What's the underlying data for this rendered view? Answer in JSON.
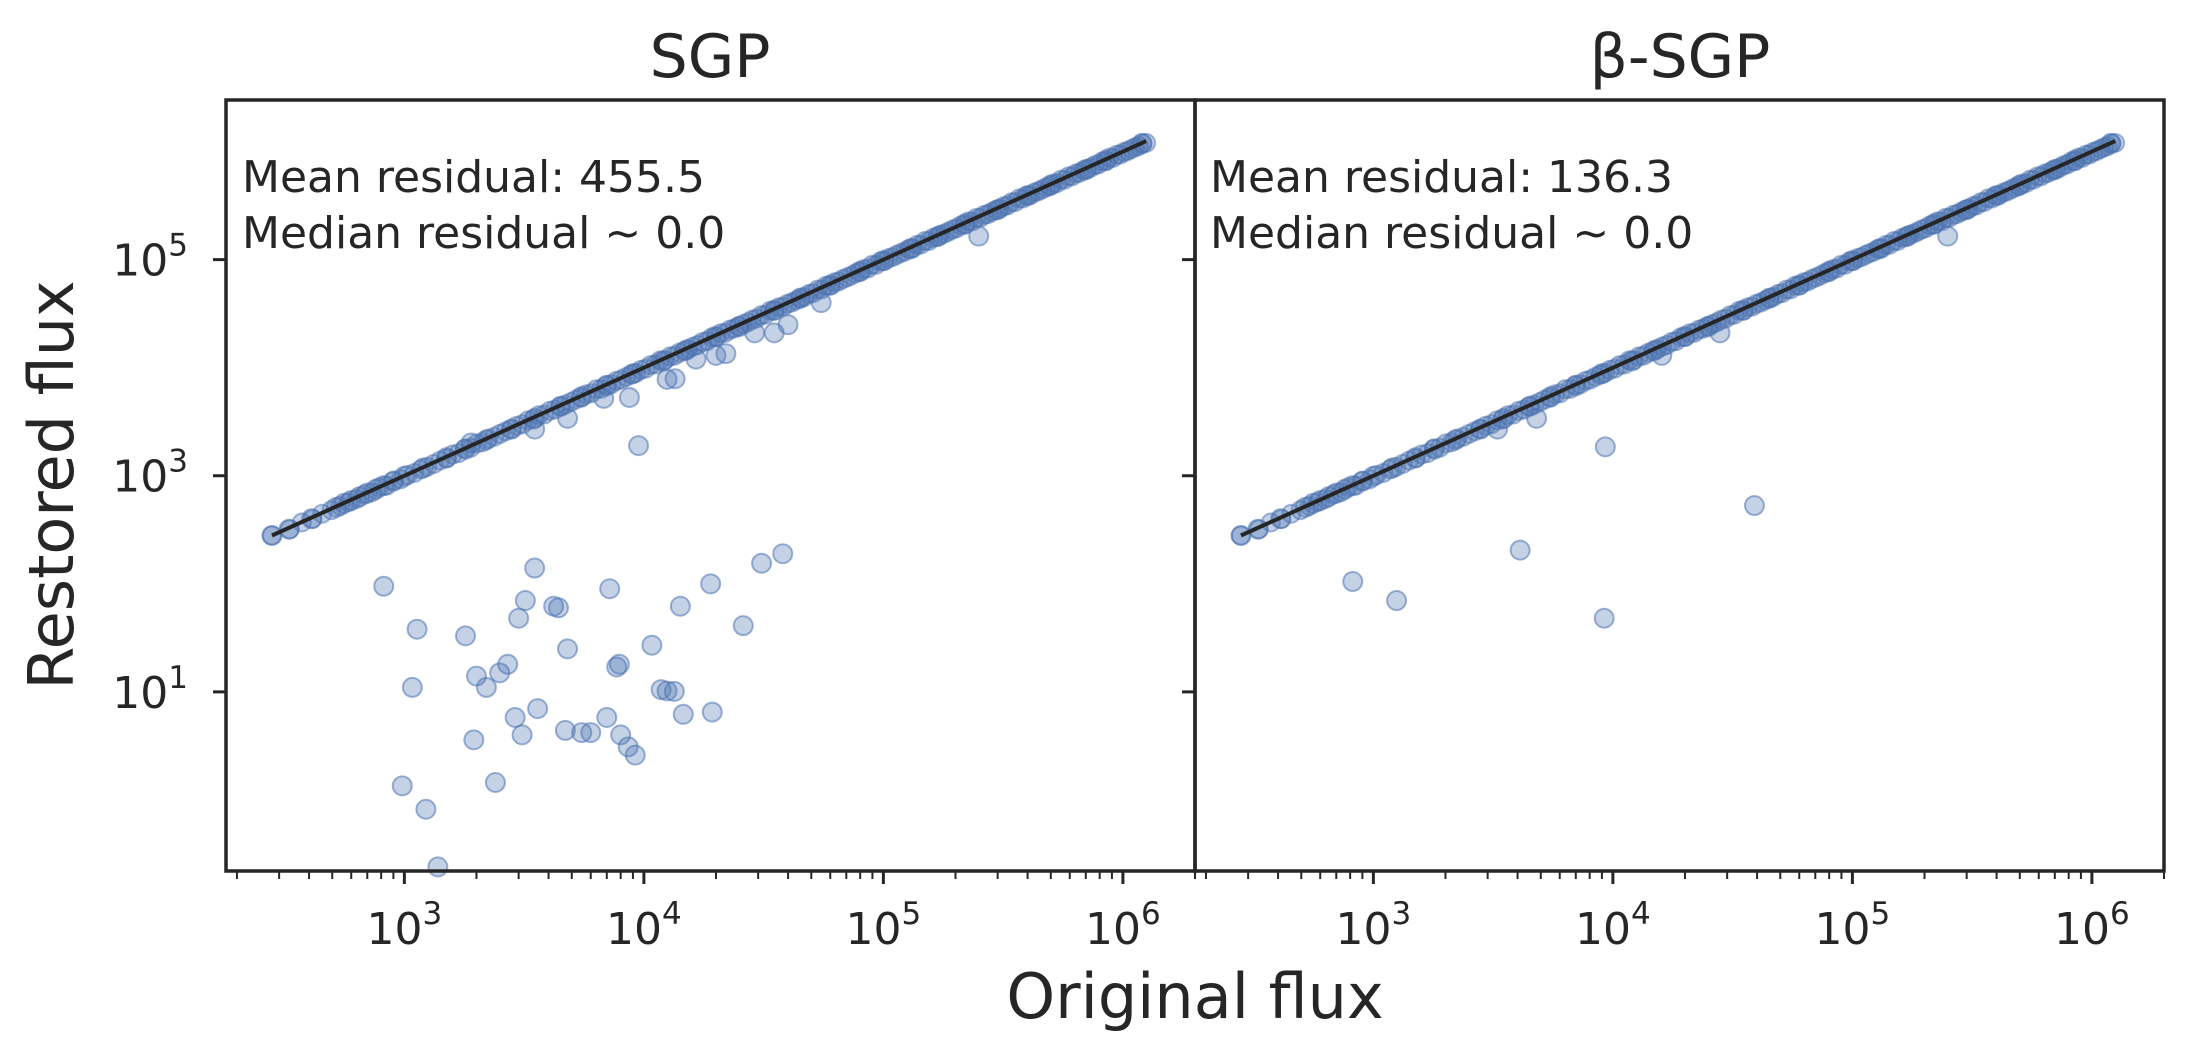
{
  "figure": {
    "xlabel": "Original flux",
    "ylabel": "Restored flux"
  },
  "colors": {
    "points": "#4c72b0",
    "identity_line": "#262626",
    "axes": "#262626",
    "text": "#262626"
  },
  "chart_data": [
    {
      "type": "scatter",
      "title": "SGP",
      "xscale": "log",
      "yscale": "log",
      "xlim": [
        180,
        2000000
      ],
      "ylim": [
        0.22,
        3000000
      ],
      "xticks": [
        {
          "base": "10",
          "exp": "3",
          "value": 1000
        },
        {
          "base": "10",
          "exp": "4",
          "value": 10000
        },
        {
          "base": "10",
          "exp": "5",
          "value": 100000
        },
        {
          "base": "10",
          "exp": "6",
          "value": 1000000
        }
      ],
      "yticks": [
        {
          "base": "10",
          "exp": "1",
          "value": 10
        },
        {
          "base": "10",
          "exp": "3",
          "value": 1000
        },
        {
          "base": "10",
          "exp": "5",
          "value": 100000
        }
      ],
      "annotations": [
        "Mean residual: 455.5",
        "Median residual ~ 0.0"
      ],
      "identity_line": {
        "x": [
          280,
          1250000
        ],
        "y": [
          280,
          1250000
        ]
      },
      "on_line_range": [
        280,
        1250000
      ],
      "series": [
        {
          "values": [
            [
              280,
              280
            ],
            [
              330,
              320
            ],
            [
              410,
              400
            ],
            [
              520,
              510
            ],
            [
              560,
              555
            ],
            [
              600,
              590
            ],
            [
              650,
              640
            ],
            [
              700,
              690
            ],
            [
              760,
              750
            ],
            [
              820,
              810
            ],
            [
              900,
              890
            ],
            [
              1000,
              990
            ],
            [
              1200,
              1180
            ],
            [
              1500,
              1470
            ],
            [
              1800,
              1760
            ],
            [
              2200,
              2150
            ],
            [
              2800,
              2700
            ],
            [
              3500,
              3400
            ],
            [
              4500,
              4400
            ],
            [
              5500,
              5400
            ],
            [
              7000,
              6800
            ],
            [
              9000,
              8800
            ],
            [
              12000,
              11500
            ],
            [
              15000,
              14500
            ],
            [
              20000,
              19500
            ],
            [
              25000,
              24000
            ],
            [
              35000,
              34000
            ],
            [
              45000,
              44000
            ],
            [
              60000,
              58000
            ],
            [
              80000,
              78000
            ],
            [
              100000,
              98000
            ],
            [
              130000,
              126000
            ],
            [
              170000,
              165000
            ],
            [
              220000,
              215000
            ],
            [
              300000,
              290000
            ],
            [
              400000,
              390000
            ],
            [
              500000,
              490000
            ],
            [
              700000,
              680000
            ],
            [
              850000,
              830000
            ],
            [
              1200000,
              1190000
            ],
            [
              1900,
              2010
            ],
            [
              3500,
              2700
            ],
            [
              4800,
              3400
            ],
            [
              6800,
              5200
            ],
            [
              8700,
              5300
            ],
            [
              12500,
              7800
            ],
            [
              13500,
              7900
            ],
            [
              16500,
              12000
            ],
            [
              20000,
              13000
            ],
            [
              22000,
              13500
            ],
            [
              29000,
              21000
            ],
            [
              35000,
              21000
            ],
            [
              40000,
              25000
            ],
            [
              55000,
              40000
            ],
            [
              9500,
              1900
            ],
            [
              250000,
              165000
            ],
            [
              820,
              95
            ],
            [
              1080,
              11
            ],
            [
              1130,
              38
            ],
            [
              1800,
              33
            ],
            [
              2000,
              14
            ],
            [
              2200,
              11
            ],
            [
              2500,
              15
            ],
            [
              2700,
              18
            ],
            [
              3000,
              48
            ],
            [
              3200,
              70
            ],
            [
              3500,
              140
            ],
            [
              3600,
              7
            ],
            [
              4200,
              62
            ],
            [
              4400,
              60
            ],
            [
              4800,
              25
            ],
            [
              7200,
              90
            ],
            [
              7700,
              17
            ],
            [
              7900,
              18
            ],
            [
              10800,
              27
            ],
            [
              14200,
              62
            ],
            [
              19000,
              100
            ],
            [
              26000,
              41
            ],
            [
              31000,
              155
            ],
            [
              38000,
              190
            ],
            [
              11800,
              10.5
            ],
            [
              12500,
              10.2
            ],
            [
              13400,
              10.1
            ],
            [
              1950,
              3.6
            ],
            [
              2400,
              1.45
            ],
            [
              2900,
              5.8
            ],
            [
              3100,
              4.0
            ],
            [
              4700,
              4.4
            ],
            [
              5500,
              4.2
            ],
            [
              6000,
              4.2
            ],
            [
              7000,
              5.8
            ],
            [
              8000,
              4.0
            ],
            [
              8600,
              3.1
            ],
            [
              9200,
              2.6
            ],
            [
              14600,
              6.2
            ],
            [
              19300,
              6.5
            ],
            [
              980,
              1.35
            ],
            [
              1230,
              0.82
            ],
            [
              1380,
              0.24
            ]
          ]
        }
      ]
    },
    {
      "type": "scatter",
      "title": "β-SGP",
      "xscale": "log",
      "yscale": "log",
      "xlim": [
        180,
        2000000
      ],
      "ylim": [
        0.22,
        3000000
      ],
      "xticks": [
        {
          "base": "10",
          "exp": "3",
          "value": 1000
        },
        {
          "base": "10",
          "exp": "4",
          "value": 10000
        },
        {
          "base": "10",
          "exp": "5",
          "value": 100000
        },
        {
          "base": "10",
          "exp": "6",
          "value": 1000000
        }
      ],
      "annotations": [
        "Mean residual: 136.3",
        "Median residual ~ 0.0"
      ],
      "identity_line": {
        "x": [
          280,
          1250000
        ],
        "y": [
          280,
          1250000
        ]
      },
      "on_line_range": [
        280,
        1250000
      ],
      "series": [
        {
          "values": [
            [
              280,
              280
            ],
            [
              330,
              320
            ],
            [
              410,
              400
            ],
            [
              520,
              510
            ],
            [
              560,
              555
            ],
            [
              600,
              590
            ],
            [
              650,
              640
            ],
            [
              700,
              690
            ],
            [
              760,
              750
            ],
            [
              820,
              810
            ],
            [
              900,
              890
            ],
            [
              1000,
              990
            ],
            [
              1200,
              1180
            ],
            [
              1500,
              1470
            ],
            [
              1800,
              1760
            ],
            [
              2200,
              2150
            ],
            [
              2800,
              2700
            ],
            [
              3500,
              3400
            ],
            [
              4500,
              4400
            ],
            [
              5500,
              5400
            ],
            [
              7000,
              6800
            ],
            [
              9000,
              8800
            ],
            [
              12000,
              11500
            ],
            [
              15000,
              14500
            ],
            [
              20000,
              19500
            ],
            [
              25000,
              24000
            ],
            [
              35000,
              34000
            ],
            [
              45000,
              44000
            ],
            [
              60000,
              58000
            ],
            [
              80000,
              78000
            ],
            [
              100000,
              98000
            ],
            [
              130000,
              126000
            ],
            [
              170000,
              165000
            ],
            [
              220000,
              215000
            ],
            [
              300000,
              290000
            ],
            [
              400000,
              390000
            ],
            [
              500000,
              490000
            ],
            [
              700000,
              680000
            ],
            [
              850000,
              830000
            ],
            [
              1200000,
              1190000
            ],
            [
              3300,
              2700
            ],
            [
              4800,
              3400
            ],
            [
              16000,
              13000
            ],
            [
              28000,
              21000
            ],
            [
              250000,
              165000
            ],
            [
              9300,
              1850
            ],
            [
              39000,
              530
            ],
            [
              4100,
              205
            ],
            [
              820,
              105
            ],
            [
              1250,
              70
            ],
            [
              9200,
              48
            ]
          ]
        }
      ]
    }
  ]
}
